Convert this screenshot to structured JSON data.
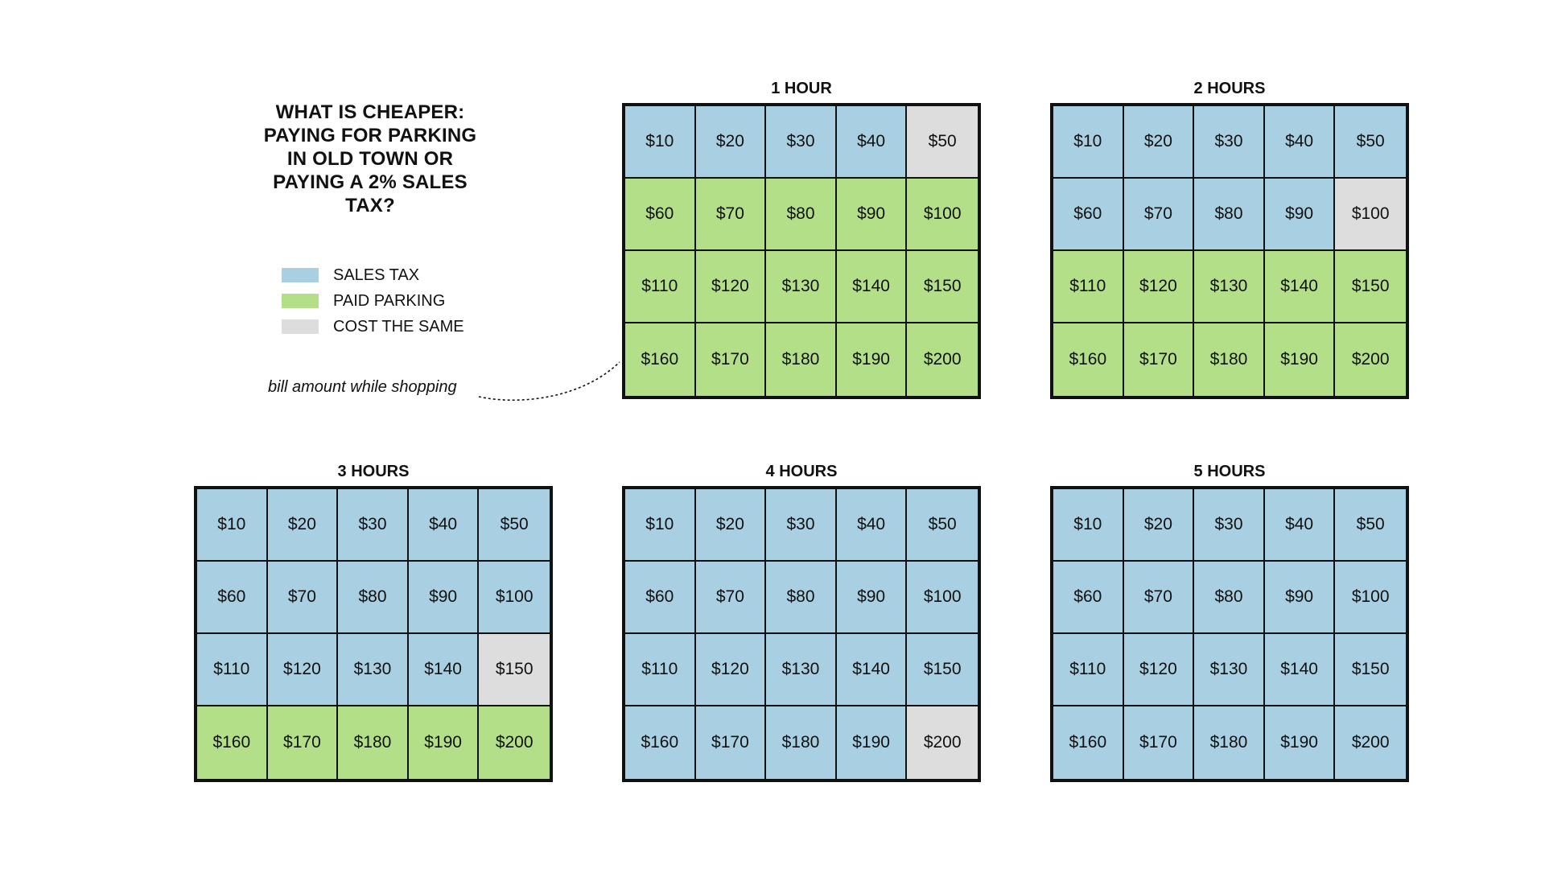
{
  "title_lines": [
    "WHAT IS CHEAPER:",
    "PAYING FOR PARKING",
    "IN OLD TOWN OR",
    "PAYING A 2% SALES",
    "TAX?"
  ],
  "annotation": "bill amount while shopping",
  "colors": {
    "sales_tax": "#a8cfe2",
    "paid_parking": "#b3df88",
    "cost_the_same": "#dddddd",
    "border": "#111111"
  },
  "chart_data": {
    "type": "table",
    "legend": [
      {
        "key": "sales_tax",
        "label": "SALES TAX"
      },
      {
        "key": "paid_parking",
        "label": "PAID PARKING"
      },
      {
        "key": "cost_the_same",
        "label": "COST THE SAME"
      }
    ],
    "bill_amounts": [
      "$10",
      "$20",
      "$30",
      "$40",
      "$50",
      "$60",
      "$70",
      "$80",
      "$90",
      "$100",
      "$110",
      "$120",
      "$130",
      "$140",
      "$150",
      "$160",
      "$170",
      "$180",
      "$190",
      "$200"
    ],
    "panels": [
      {
        "title": "1 HOUR",
        "cheaper": [
          "sales_tax",
          "sales_tax",
          "sales_tax",
          "sales_tax",
          "cost_the_same",
          "paid_parking",
          "paid_parking",
          "paid_parking",
          "paid_parking",
          "paid_parking",
          "paid_parking",
          "paid_parking",
          "paid_parking",
          "paid_parking",
          "paid_parking",
          "paid_parking",
          "paid_parking",
          "paid_parking",
          "paid_parking",
          "paid_parking"
        ]
      },
      {
        "title": "2 HOURS",
        "cheaper": [
          "sales_tax",
          "sales_tax",
          "sales_tax",
          "sales_tax",
          "sales_tax",
          "sales_tax",
          "sales_tax",
          "sales_tax",
          "sales_tax",
          "cost_the_same",
          "paid_parking",
          "paid_parking",
          "paid_parking",
          "paid_parking",
          "paid_parking",
          "paid_parking",
          "paid_parking",
          "paid_parking",
          "paid_parking",
          "paid_parking"
        ]
      },
      {
        "title": "3 HOURS",
        "cheaper": [
          "sales_tax",
          "sales_tax",
          "sales_tax",
          "sales_tax",
          "sales_tax",
          "sales_tax",
          "sales_tax",
          "sales_tax",
          "sales_tax",
          "sales_tax",
          "sales_tax",
          "sales_tax",
          "sales_tax",
          "sales_tax",
          "cost_the_same",
          "paid_parking",
          "paid_parking",
          "paid_parking",
          "paid_parking",
          "paid_parking"
        ]
      },
      {
        "title": "4 HOURS",
        "cheaper": [
          "sales_tax",
          "sales_tax",
          "sales_tax",
          "sales_tax",
          "sales_tax",
          "sales_tax",
          "sales_tax",
          "sales_tax",
          "sales_tax",
          "sales_tax",
          "sales_tax",
          "sales_tax",
          "sales_tax",
          "sales_tax",
          "sales_tax",
          "sales_tax",
          "sales_tax",
          "sales_tax",
          "sales_tax",
          "cost_the_same"
        ]
      },
      {
        "title": "5 HOURS",
        "cheaper": [
          "sales_tax",
          "sales_tax",
          "sales_tax",
          "sales_tax",
          "sales_tax",
          "sales_tax",
          "sales_tax",
          "sales_tax",
          "sales_tax",
          "sales_tax",
          "sales_tax",
          "sales_tax",
          "sales_tax",
          "sales_tax",
          "sales_tax",
          "sales_tax",
          "sales_tax",
          "sales_tax",
          "sales_tax",
          "sales_tax"
        ]
      }
    ]
  }
}
